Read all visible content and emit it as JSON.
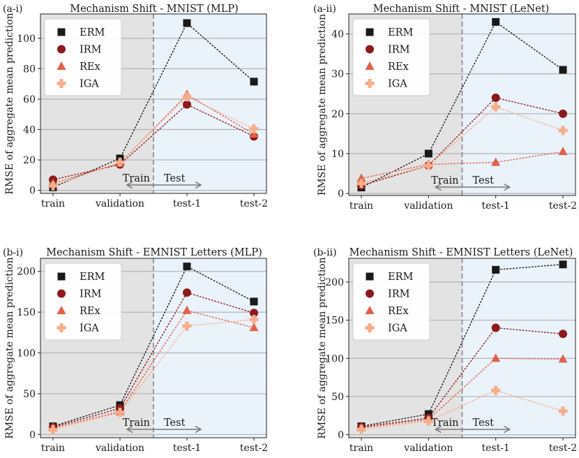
{
  "colors": {
    "ERM": "#1a1a1a",
    "IRM": "#8c1a1c",
    "REx": "#e0614a",
    "IGA": "#f6ad8a",
    "train_shade": "#e3e3e3",
    "test_shade": "#eaf2fa",
    "grid": "#b3b3b3",
    "divider": "#808080"
  },
  "legend_markers": {
    "ERM": "square",
    "IRM": "circle",
    "REx": "triangle",
    "IGA": "plus"
  },
  "arrow_labels": {
    "train": "Train",
    "test": "Test"
  },
  "chart_data": [
    {
      "type": "scatter",
      "panel_label": "(a-i)",
      "title": "Mechanism Shift - MNIST (MLP)",
      "ylabel": "RMSE of aggregate mean prediction",
      "xlabel": "",
      "categories": [
        "train",
        "validation",
        "test-1",
        "test-2"
      ],
      "ylim": [
        -2,
        116
      ],
      "yticks": [
        0,
        20,
        40,
        60,
        80,
        100
      ],
      "grid": true,
      "legend": "top-left",
      "series": [
        {
          "name": "ERM",
          "values": [
            2,
            21,
            110,
            71.5
          ]
        },
        {
          "name": "IRM",
          "values": [
            7,
            17,
            56.5,
            35.5
          ]
        },
        {
          "name": "REx",
          "values": [
            4.5,
            18,
            63,
            37
          ]
        },
        {
          "name": "IGA",
          "values": [
            3,
            18.5,
            61.5,
            40.5
          ]
        }
      ]
    },
    {
      "type": "scatter",
      "panel_label": "(a-ii)",
      "title": "Mechanism Shift - MNIST (LeNet)",
      "ylabel": "RMSE of aggregate mean prediction",
      "xlabel": "",
      "categories": [
        "train",
        "validation",
        "test-1",
        "test-2"
      ],
      "ylim": [
        -0.5,
        45
      ],
      "yticks": [
        0,
        10,
        20,
        30,
        40
      ],
      "grid": true,
      "legend": "top-left",
      "series": [
        {
          "name": "ERM",
          "values": [
            1.5,
            10,
            43,
            31
          ]
        },
        {
          "name": "IRM",
          "values": [
            2,
            7,
            24,
            20
          ]
        },
        {
          "name": "REx",
          "values": [
            3.8,
            7.3,
            7.8,
            10.5
          ]
        },
        {
          "name": "IGA",
          "values": [
            2.5,
            7,
            21.7,
            15.8
          ]
        }
      ]
    },
    {
      "type": "scatter",
      "panel_label": "(b-i)",
      "title": "Mechanism Shift - EMNIST Letters (MLP)",
      "ylabel": "RMSE of aggregate mean prediction",
      "xlabel": "",
      "categories": [
        "train",
        "validation",
        "test-1",
        "test-2"
      ],
      "ylim": [
        -4,
        216
      ],
      "yticks": [
        0,
        50,
        100,
        150,
        200
      ],
      "grid": true,
      "legend": "top-left",
      "series": [
        {
          "name": "ERM",
          "values": [
            10,
            36,
            206,
            163
          ]
        },
        {
          "name": "IRM",
          "values": [
            9,
            32,
            174,
            149
          ]
        },
        {
          "name": "REx",
          "values": [
            8,
            28,
            152,
            131
          ]
        },
        {
          "name": "IGA",
          "values": [
            6,
            27,
            133,
            141
          ]
        }
      ]
    },
    {
      "type": "scatter",
      "panel_label": "(b-ii)",
      "title": "Mechanism Shift - EMNIST Letters (LeNet)",
      "ylabel": "RMSE of aggregate mean prediction",
      "xlabel": "",
      "categories": [
        "train",
        "validation",
        "test-1",
        "test-2"
      ],
      "ylim": [
        -4,
        231
      ],
      "yticks": [
        0,
        50,
        100,
        150,
        200
      ],
      "grid": true,
      "legend": "top-left",
      "series": [
        {
          "name": "ERM",
          "values": [
            11,
            27,
            216,
            223
          ]
        },
        {
          "name": "IRM",
          "values": [
            10,
            22,
            140,
            132
          ]
        },
        {
          "name": "REx",
          "values": [
            9,
            20,
            100,
            99
          ]
        },
        {
          "name": "IGA",
          "values": [
            7,
            18,
            58,
            31
          ]
        }
      ]
    }
  ]
}
